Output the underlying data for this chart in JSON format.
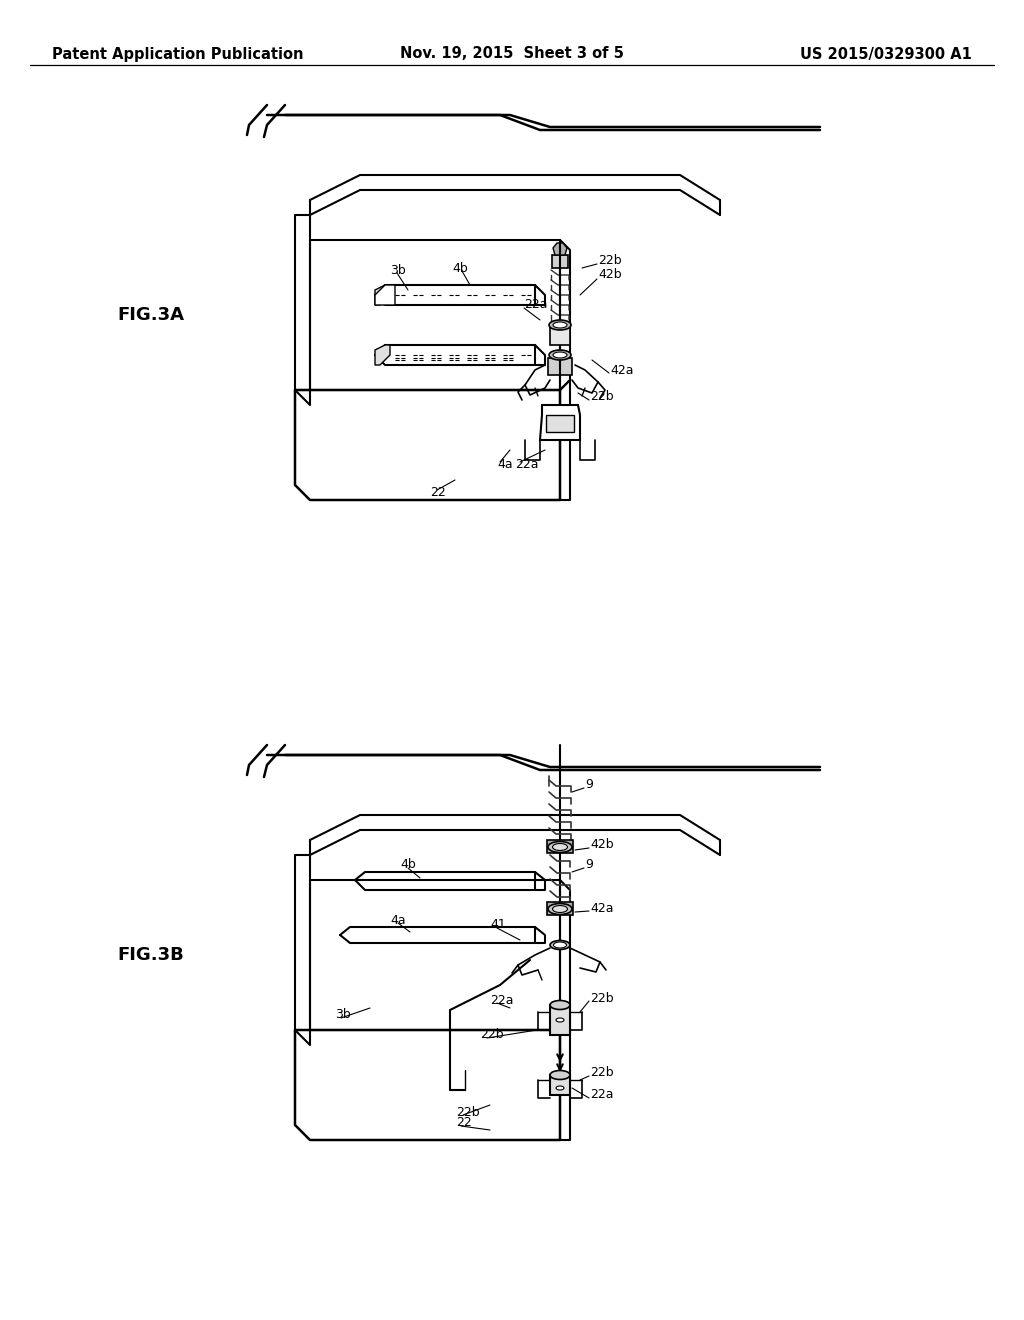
{
  "background_color": "#ffffff",
  "header": {
    "left": "Patent Application Publication",
    "center": "Nov. 19, 2015  Sheet 3 of 5",
    "right": "US 2015/0329300 A1",
    "fontsize": 10.5
  },
  "line_color": "#000000",
  "fig3a_label": "FIG.3A",
  "fig3b_label": "FIG.3B"
}
